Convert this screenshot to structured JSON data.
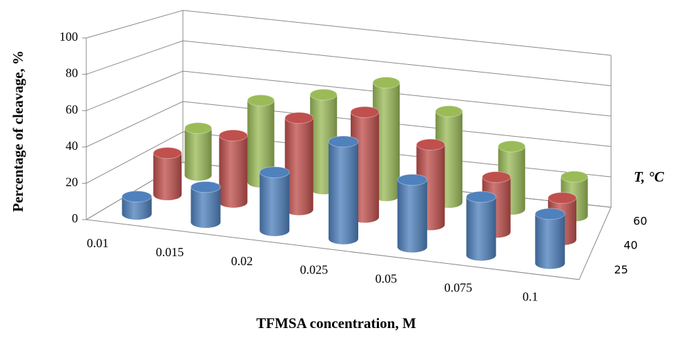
{
  "chart_data": {
    "type": "bar3d",
    "x_label": "TFMSA concentration, M",
    "y_label": "Percentage of cleavage, %",
    "z_label": "T, °C",
    "categories": [
      "0.01",
      "0.015",
      "0.02",
      "0.025",
      "0.05",
      "0.075",
      "0.1"
    ],
    "series": [
      {
        "name": "25",
        "color": "#4f81bd",
        "values": [
          10,
          20,
          33,
          55,
          38,
          33,
          28
        ]
      },
      {
        "name": "40",
        "color": "#c0504d",
        "values": [
          25,
          40,
          55,
          63,
          48,
          33,
          25
        ]
      },
      {
        "name": "60",
        "color": "#9bbb59",
        "values": [
          30,
          52,
          60,
          72,
          58,
          40,
          25
        ]
      }
    ],
    "ylim": [
      0,
      100
    ],
    "yticks": [
      0,
      20,
      40,
      60,
      80,
      100
    ],
    "grid": true
  }
}
